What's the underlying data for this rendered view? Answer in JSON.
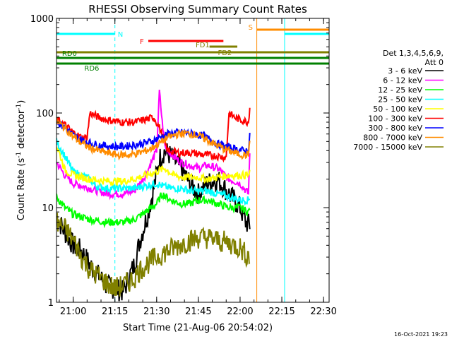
{
  "chart_data": {
    "type": "line",
    "title": "RHESSI Observing Summary Count Rates",
    "xlabel": "Start Time (21-Aug-06 20:54:02)",
    "ylabel_main": "Count Rate (s",
    "ylabel_sup1": "-1",
    "ylabel_mid": " detector",
    "ylabel_sup2": "-1",
    "ylabel_end": ")",
    "y_log": true,
    "ylim": [
      1,
      1000
    ],
    "xlim_minutes": [
      0,
      98
    ],
    "x_ticks": [
      {
        "label": "21:00",
        "minute": 6
      },
      {
        "label": "21:15",
        "minute": 21
      },
      {
        "label": "21:30",
        "minute": 36
      },
      {
        "label": "21:45",
        "minute": 51
      },
      {
        "label": "22:00",
        "minute": 66
      },
      {
        "label": "22:15",
        "minute": 81
      },
      {
        "label": "22:30",
        "minute": 96
      }
    ],
    "y_ticks": [
      {
        "label": "1",
        "value": 1
      },
      {
        "label": "10",
        "value": 10
      },
      {
        "label": "100",
        "value": 100
      },
      {
        "label": "1000",
        "value": 1000
      }
    ],
    "legend_title": [
      "Det 1,3,4,5,6,9,",
      "Att 0"
    ],
    "series": [
      {
        "name": "3 - 6 keV",
        "color": "#000000",
        "points": [
          [
            0,
            8
          ],
          [
            3,
            5.5
          ],
          [
            6,
            4
          ],
          [
            9,
            3.5
          ],
          [
            12,
            2.5
          ],
          [
            18,
            1.5
          ],
          [
            24,
            1.3
          ],
          [
            28,
            2.5
          ],
          [
            30,
            4.5
          ],
          [
            33,
            9
          ],
          [
            35,
            16
          ],
          [
            37,
            33
          ],
          [
            39,
            40
          ],
          [
            42,
            33
          ],
          [
            45,
            25
          ],
          [
            48,
            18
          ],
          [
            51,
            14
          ],
          [
            54,
            18
          ],
          [
            58,
            20
          ],
          [
            62,
            14
          ],
          [
            66,
            10
          ],
          [
            68,
            7
          ],
          [
            69.5,
            6.5
          ]
        ]
      },
      {
        "name": "6 - 12 keV",
        "color": "#ff00ff",
        "points": [
          [
            0,
            30
          ],
          [
            3,
            22
          ],
          [
            6,
            18
          ],
          [
            9,
            17
          ],
          [
            12,
            16
          ],
          [
            18,
            14
          ],
          [
            24,
            14
          ],
          [
            28,
            15
          ],
          [
            32,
            22
          ],
          [
            36,
            40
          ],
          [
            37,
            170
          ],
          [
            38,
            80
          ],
          [
            39,
            45
          ],
          [
            42,
            35
          ],
          [
            45,
            30
          ],
          [
            48,
            28
          ],
          [
            51,
            26
          ],
          [
            54,
            28
          ],
          [
            58,
            26
          ],
          [
            62,
            20
          ],
          [
            66,
            18
          ],
          [
            69,
            14
          ],
          [
            69.5,
            40
          ]
        ]
      },
      {
        "name": "12 - 25 keV",
        "color": "#00ff00",
        "points": [
          [
            0,
            13
          ],
          [
            3,
            10
          ],
          [
            6,
            8.5
          ],
          [
            9,
            8
          ],
          [
            12,
            7.5
          ],
          [
            18,
            7
          ],
          [
            24,
            7
          ],
          [
            28,
            7.5
          ],
          [
            32,
            9
          ],
          [
            36,
            11
          ],
          [
            38,
            14
          ],
          [
            41,
            12
          ],
          [
            45,
            11
          ],
          [
            48,
            11
          ],
          [
            51,
            12
          ],
          [
            54,
            12
          ],
          [
            58,
            11
          ],
          [
            62,
            10
          ],
          [
            66,
            10
          ],
          [
            69,
            9
          ],
          [
            69.5,
            10
          ]
        ]
      },
      {
        "name": "25 - 50 keV",
        "color": "#00ffff",
        "points": [
          [
            0,
            50
          ],
          [
            3,
            35
          ],
          [
            6,
            24
          ],
          [
            9,
            22
          ],
          [
            12,
            20
          ],
          [
            14,
            17
          ],
          [
            18,
            16
          ],
          [
            24,
            16
          ],
          [
            28,
            16
          ],
          [
            32,
            17
          ],
          [
            36,
            18
          ],
          [
            38,
            17
          ],
          [
            41,
            16
          ],
          [
            45,
            16
          ],
          [
            48,
            15
          ],
          [
            51,
            15
          ],
          [
            54,
            15
          ],
          [
            58,
            14
          ],
          [
            62,
            13
          ],
          [
            66,
            12
          ],
          [
            69,
            12
          ],
          [
            69.5,
            13
          ]
        ]
      },
      {
        "name": "50 - 100 keV",
        "color": "#ffff00",
        "points": [
          [
            0,
            45
          ],
          [
            1,
            38
          ],
          [
            3,
            25
          ],
          [
            6,
            22
          ],
          [
            9,
            21
          ],
          [
            12,
            20
          ],
          [
            18,
            19
          ],
          [
            24,
            19
          ],
          [
            28,
            20
          ],
          [
            32,
            22
          ],
          [
            36,
            24
          ],
          [
            39,
            26
          ],
          [
            42,
            22
          ],
          [
            45,
            21
          ],
          [
            48,
            21
          ],
          [
            51,
            21
          ],
          [
            54,
            20
          ],
          [
            58,
            21
          ],
          [
            62,
            22
          ],
          [
            66,
            22
          ],
          [
            69,
            22
          ],
          [
            69.5,
            23
          ]
        ]
      },
      {
        "name": "100 - 300 keV",
        "color": "#ff0000",
        "points": [
          [
            0,
            85
          ],
          [
            3,
            75
          ],
          [
            6,
            62
          ],
          [
            9,
            55
          ],
          [
            11,
            55
          ],
          [
            12,
            100
          ],
          [
            15,
            90
          ],
          [
            18,
            85
          ],
          [
            24,
            80
          ],
          [
            28,
            80
          ],
          [
            32,
            85
          ],
          [
            35,
            90
          ],
          [
            37,
            70
          ],
          [
            40,
            40
          ],
          [
            44,
            38
          ],
          [
            48,
            38
          ],
          [
            51,
            37
          ],
          [
            54,
            36
          ],
          [
            58,
            35
          ],
          [
            61,
            34
          ],
          [
            62,
            100
          ],
          [
            64,
            90
          ],
          [
            66,
            85
          ],
          [
            69,
            80
          ],
          [
            69.5,
            120
          ]
        ]
      },
      {
        "name": "300 - 800 keV",
        "color": "#0000ff",
        "points": [
          [
            0,
            82
          ],
          [
            3,
            70
          ],
          [
            6,
            58
          ],
          [
            9,
            52
          ],
          [
            12,
            48
          ],
          [
            15,
            46
          ],
          [
            18,
            45
          ],
          [
            22,
            44
          ],
          [
            26,
            45
          ],
          [
            30,
            47
          ],
          [
            34,
            50
          ],
          [
            37,
            55
          ],
          [
            40,
            60
          ],
          [
            43,
            62
          ],
          [
            46,
            62
          ],
          [
            49,
            60
          ],
          [
            52,
            58
          ],
          [
            55,
            53
          ],
          [
            58,
            47
          ],
          [
            61,
            44
          ],
          [
            64,
            42
          ],
          [
            67,
            40
          ],
          [
            69,
            40
          ],
          [
            69.5,
            60
          ]
        ]
      },
      {
        "name": "800 - 7000 keV",
        "color": "#ff8c00",
        "points": [
          [
            0,
            82
          ],
          [
            3,
            70
          ],
          [
            6,
            56
          ],
          [
            9,
            48
          ],
          [
            12,
            43
          ],
          [
            15,
            40
          ],
          [
            18,
            38
          ],
          [
            22,
            36
          ],
          [
            26,
            36
          ],
          [
            30,
            38
          ],
          [
            34,
            42
          ],
          [
            37,
            48
          ],
          [
            40,
            55
          ],
          [
            43,
            59
          ],
          [
            46,
            61
          ],
          [
            49,
            60
          ],
          [
            52,
            56
          ],
          [
            55,
            50
          ],
          [
            58,
            45
          ],
          [
            61,
            41
          ],
          [
            64,
            38
          ],
          [
            67,
            36
          ],
          [
            69,
            36
          ],
          [
            69.5,
            55
          ]
        ]
      },
      {
        "name": "7000 - 15000 keV",
        "color": "#808000",
        "points": [
          [
            0,
            7
          ],
          [
            3,
            6
          ],
          [
            5,
            5
          ],
          [
            7,
            4
          ],
          [
            9,
            3
          ],
          [
            12,
            2.2
          ],
          [
            15,
            1.9
          ],
          [
            18,
            1.6
          ],
          [
            21,
            1.4
          ],
          [
            24,
            1.5
          ],
          [
            28,
            1.8
          ],
          [
            30,
            2.2
          ],
          [
            33,
            2.6
          ],
          [
            36,
            3
          ],
          [
            40,
            3.5
          ],
          [
            44,
            4
          ],
          [
            48,
            4.5
          ],
          [
            51,
            4.8
          ],
          [
            54,
            4.8
          ],
          [
            58,
            4.5
          ],
          [
            62,
            4.2
          ],
          [
            66,
            3.8
          ],
          [
            68,
            3.2
          ],
          [
            69.5,
            3
          ]
        ]
      }
    ],
    "annotations": [
      {
        "label": "N",
        "color": "#00ffff",
        "bar_start": 0,
        "bar_end": 21,
        "level": 0
      },
      {
        "label": "S",
        "color": "#ff8c00",
        "bar_start": 72,
        "bar_end": 98,
        "level": 1
      },
      {
        "label": "",
        "color": "#00ffff",
        "bar_start": 82,
        "bar_end": 98,
        "level": 0
      },
      {
        "label": "F",
        "color": "#ff0000",
        "bar_start": 33,
        "bar_end": 60,
        "level": 2
      },
      {
        "label": "FD1",
        "color": "#808000",
        "bar_start": 55,
        "bar_end": 65,
        "level": 3
      },
      {
        "label": "FD2",
        "color": "#808000",
        "bar_start": 0,
        "bar_end": 98,
        "level": 4
      },
      {
        "label": "RD0",
        "color": "#008000",
        "bar_start": 0,
        "bar_end": 98,
        "level": 5
      },
      {
        "label": "RD6",
        "color": "#008000",
        "bar_start": 0,
        "bar_end": 98,
        "level": 6
      }
    ],
    "timestamp": "16-Oct-2021 19:23"
  }
}
